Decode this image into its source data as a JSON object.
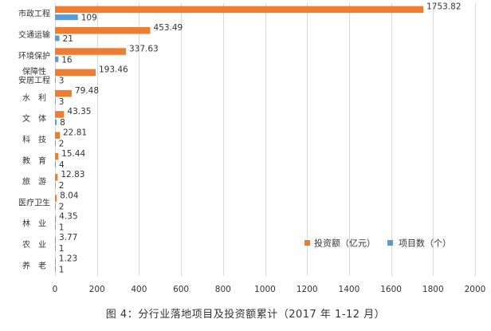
{
  "chart_data": {
    "type": "bar",
    "orientation": "horizontal",
    "title": "图 4：分行业落地项目及投资额累计（2017 年 1-12 月）",
    "categories": [
      "市政工程",
      "交通运输",
      "环境保护",
      "保障性安居工程",
      "水　利",
      "文　体",
      "科　技",
      "教　育",
      "旅　游",
      "医疗卫生",
      "林　业",
      "农　业",
      "养　老"
    ],
    "category_display": [
      [
        "市政工程"
      ],
      [
        "交通运输"
      ],
      [
        "环境保护"
      ],
      [
        "保障性",
        "安居工程"
      ],
      [
        "水　利"
      ],
      [
        "文　体"
      ],
      [
        "科　技"
      ],
      [
        "教　育"
      ],
      [
        "旅　游"
      ],
      [
        "医疗卫生"
      ],
      [
        "林　业"
      ],
      [
        "农　业"
      ],
      [
        "养　老"
      ]
    ],
    "series": [
      {
        "name": "投资额（亿元）",
        "color": "#ED7D31",
        "values": [
          1753.82,
          453.49,
          337.63,
          193.46,
          79.48,
          43.35,
          22.81,
          15.44,
          12.83,
          8.04,
          4.35,
          3.77,
          1.23
        ],
        "labels": [
          "1753.82",
          "453.49",
          "337.63",
          "193.46",
          "79.48",
          "43.35",
          "22.81",
          "15.44",
          "12.83",
          "8.04",
          "4.35",
          "3.77",
          "1.23"
        ]
      },
      {
        "name": "项目数（个）",
        "color": "#5B9BD5",
        "values": [
          109,
          21,
          16,
          3,
          3,
          8,
          2,
          4,
          2,
          2,
          1,
          1,
          1
        ],
        "labels": [
          "109",
          "21",
          "16",
          "3",
          "3",
          "8",
          "2",
          "4",
          "2",
          "2",
          "1",
          "1",
          "1"
        ]
      }
    ],
    "xlim": [
      0,
      2000
    ],
    "xticks": [
      "0",
      "200",
      "400",
      "600",
      "800",
      "1000",
      "1200",
      "1400",
      "1600",
      "1800",
      "2000"
    ],
    "grid": true,
    "legend_position": "bottom-right"
  }
}
